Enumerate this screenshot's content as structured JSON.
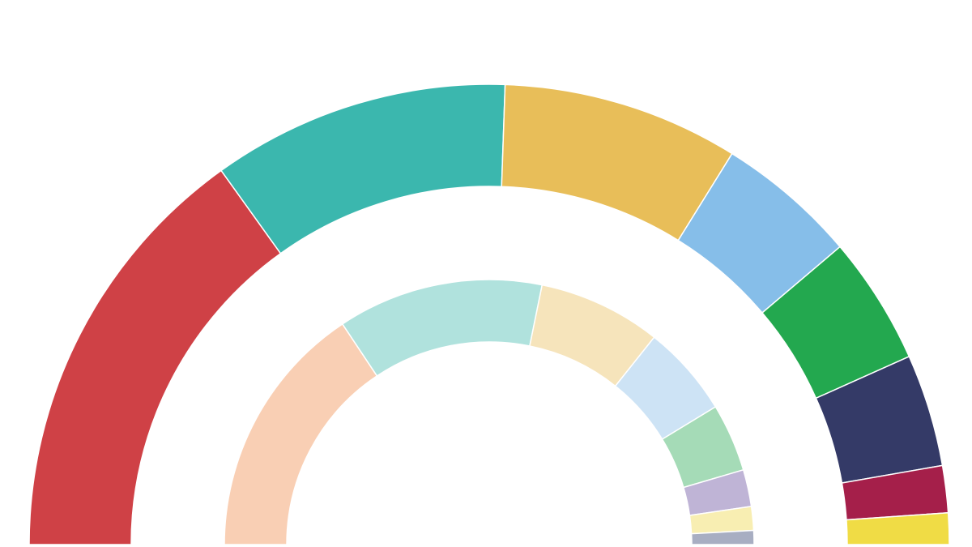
{
  "chart_data": {
    "type": "semi-donut",
    "series": [
      {
        "values": [
          30.2,
          20.9,
          16.6,
          9.9,
          9.0,
          7.9,
          3.3,
          2.2
        ],
        "colors": [
          "#cf4146",
          "#3bb7ae",
          "#e8be59",
          "#86bee9",
          "#23a84f",
          "#343a67",
          "#a51f4a",
          "#f0dc45"
        ]
      },
      {
        "values": [
          31.3,
          25.1,
          15.0,
          11.2,
          8.3,
          4.5,
          2.9,
          1.7
        ],
        "colors": [
          "#f9cfb4",
          "#b0e2dd",
          "#f6e4bb",
          "#cde3f5",
          "#a5dbb7",
          "#bfb4d6",
          "#f8eeb2",
          "#a8aec2"
        ]
      }
    ]
  }
}
